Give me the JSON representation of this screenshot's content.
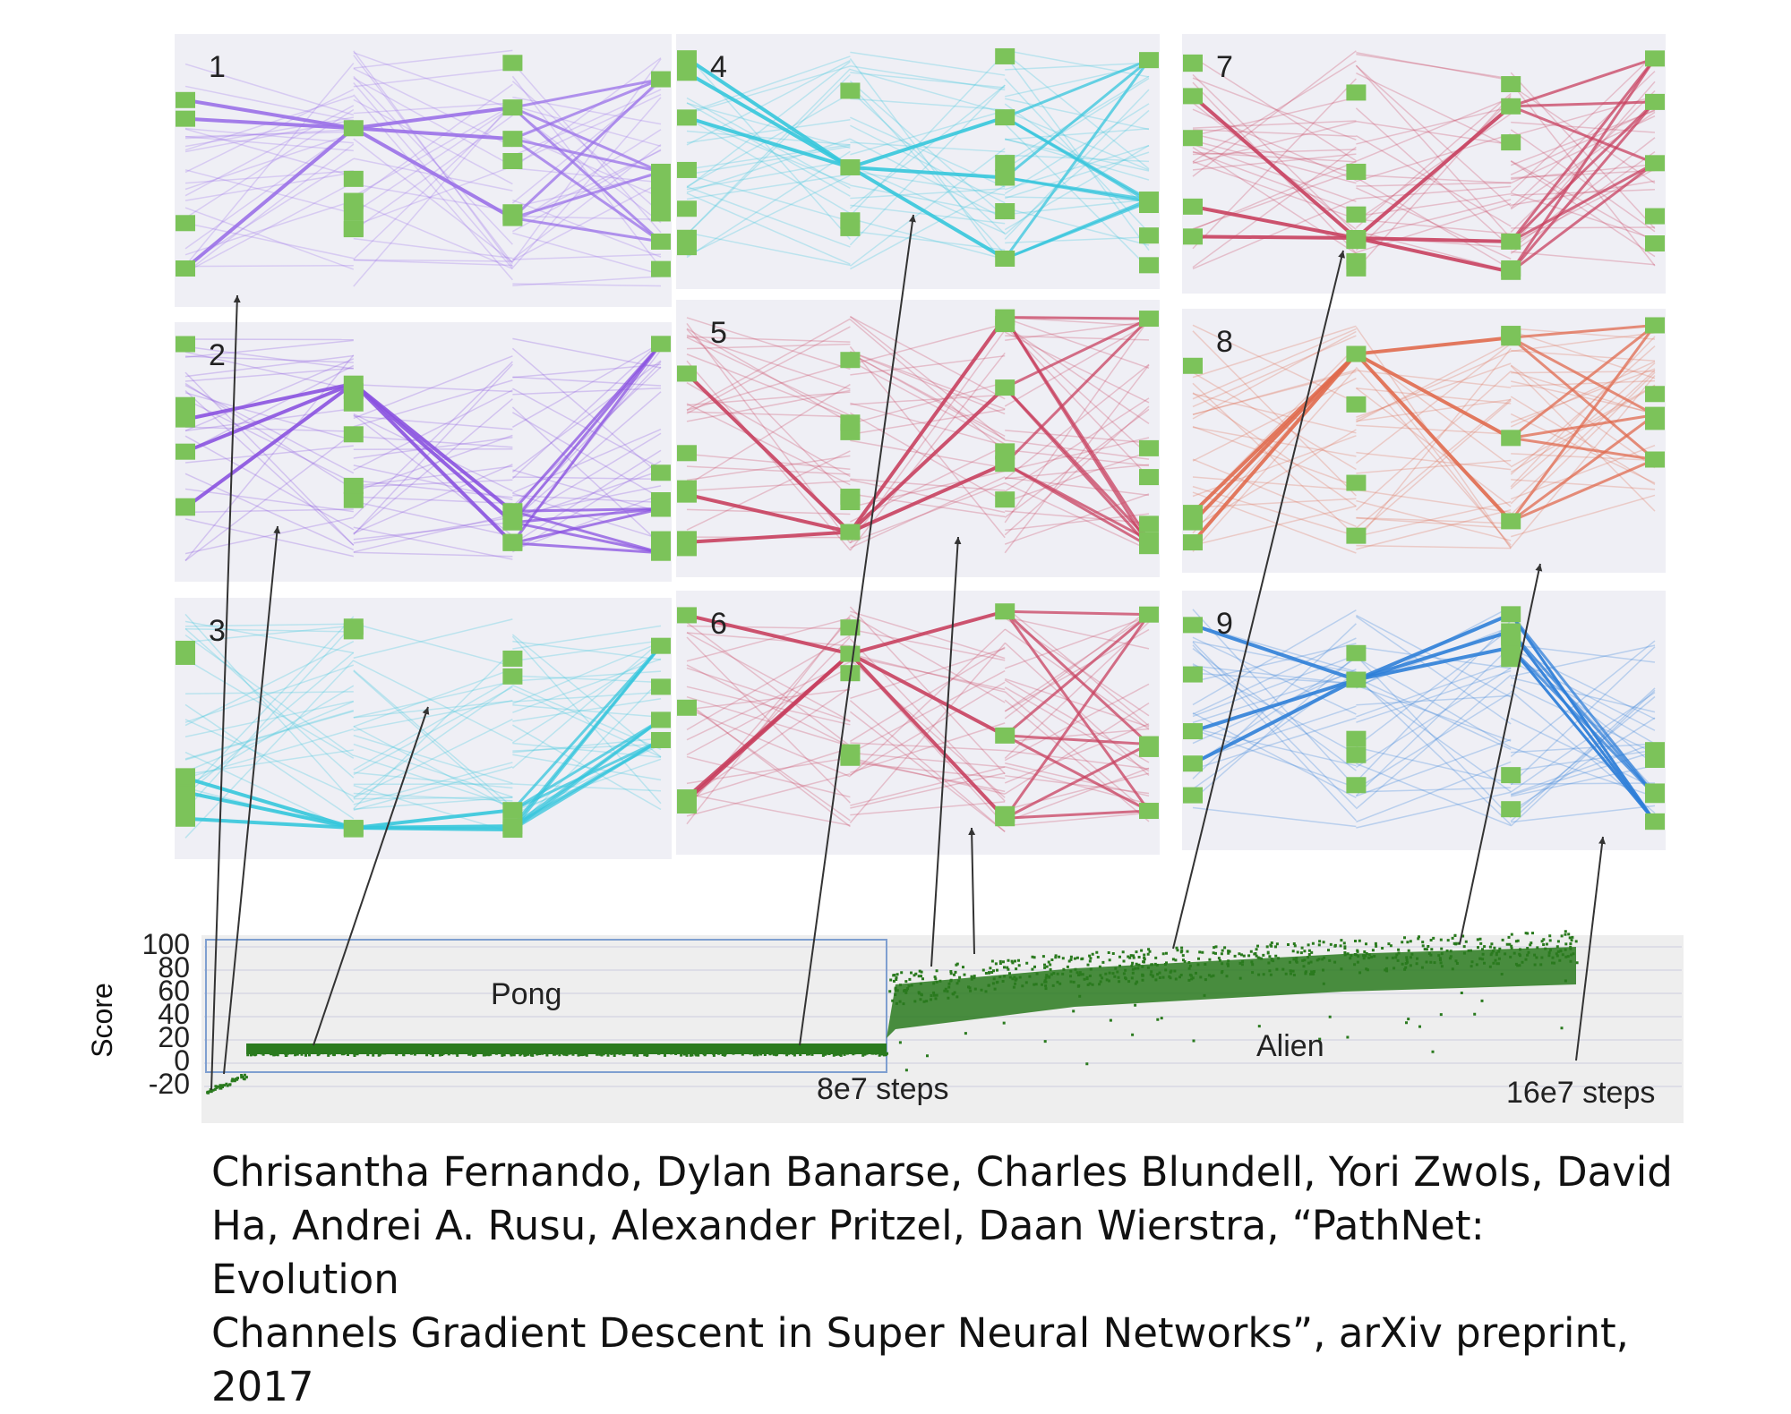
{
  "panels": [
    {
      "label": "1",
      "color": "#9a70e8"
    },
    {
      "label": "2",
      "color": "#8a52e0"
    },
    {
      "label": "3",
      "color": "#35c6dc"
    },
    {
      "label": "4",
      "color": "#35c6dc"
    },
    {
      "label": "5",
      "color": "#c8405f"
    },
    {
      "label": "6",
      "color": "#c8405f"
    },
    {
      "label": "7",
      "color": "#c8405f"
    },
    {
      "label": "8",
      "color": "#e06a4e"
    },
    {
      "label": "9",
      "color": "#2f7fd8"
    }
  ],
  "node_color": "#7cc35a",
  "score_plot": {
    "ylabel": "Score",
    "yticks": [
      "100",
      "80",
      "60",
      "40",
      "20",
      "0",
      "-20"
    ],
    "point_color": "#2a7a1e",
    "pong_label": "Pong",
    "alien_label": "Alien",
    "step_mid_label": "8e7 steps",
    "step_end_label": "16e7 steps"
  },
  "citation": {
    "line1": "Chrisantha Fernando, Dylan Banarse, Charles Blundell, Yori Zwols, David",
    "line2": "Ha, Andrei A. Rusu, Alexander Pritzel, Daan Wierstra, “PathNet: Evolution",
    "line3": "Channels Gradient Descent in Super Neural Networks”, arXiv preprint, 2017"
  }
}
